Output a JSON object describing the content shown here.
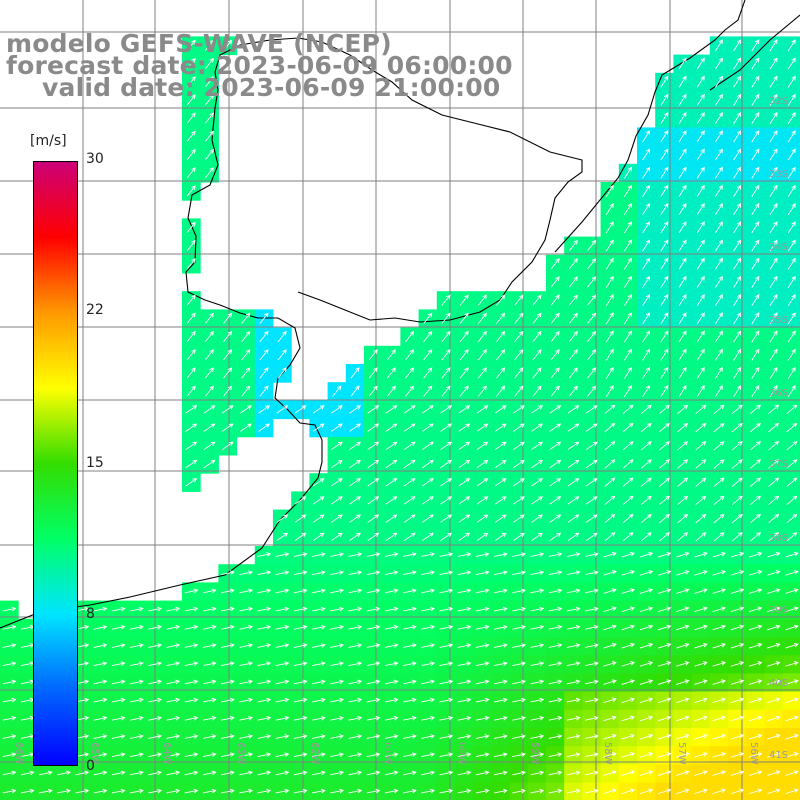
{
  "title": {
    "line1": "modelo GEFS-WAVE (NCEP)",
    "line2": "forecast date: 2023-06-09 06:00:00",
    "line3": "valid date: 2023-06-09 21:00:00"
  },
  "colorbar": {
    "unit": "[m/s]",
    "ticks": [
      "30",
      "22",
      "15",
      "8",
      "0"
    ],
    "min": 0,
    "max": 30,
    "colors": [
      "#0000ff",
      "#0066ff",
      "#00e5ff",
      "#00ff66",
      "#33dd00",
      "#ffff00",
      "#ff9900",
      "#ff0000",
      "#cc0077"
    ]
  },
  "map": {
    "lat_labels": [
      "32S",
      "33S",
      "34S",
      "35S",
      "36S",
      "37S",
      "38S",
      "39S",
      "40S",
      "41S"
    ],
    "lon_labels": [
      "66W",
      "65W",
      "64W",
      "63W",
      "62W",
      "61W",
      "60W",
      "59W",
      "58W",
      "57W",
      "56W"
    ],
    "land_color": "#ffffff",
    "grid_color": "#808080",
    "coast_color": "#000000",
    "arrow_color": "#ffffff"
  }
}
